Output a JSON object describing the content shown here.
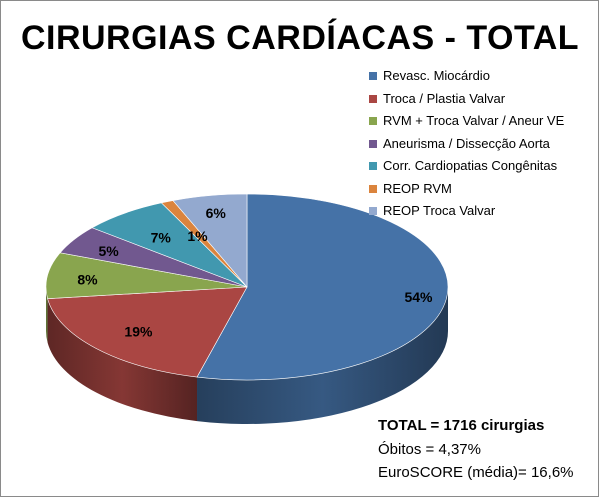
{
  "chart_data": {
    "type": "pie",
    "title": "CIRURGIAS CARDÍACAS - TOTAL",
    "legend_position": "top-right",
    "slices": [
      {
        "name": "Revasc. Miocárdio",
        "value": 54,
        "label": "54%",
        "color": "#4572A7"
      },
      {
        "name": "Troca / Plastia Valvar",
        "value": 19,
        "label": "19%",
        "color": "#AA4643"
      },
      {
        "name": "RVM + Troca Valvar / Aneur VE",
        "value": 8,
        "label": "8%",
        "color": "#89A54E"
      },
      {
        "name": "Aneurisma / Dissecção Aorta",
        "value": 5,
        "label": "5%",
        "color": "#71588F"
      },
      {
        "name": "Corr. Cardiopatias Congênitas",
        "value": 7,
        "label": "7%",
        "color": "#4198AF"
      },
      {
        "name": "REOP RVM",
        "value": 1,
        "label": "1%",
        "color": "#DB843D"
      },
      {
        "name": "REOP Troca Valvar",
        "value": 6,
        "label": "6%",
        "color": "#93A9CF"
      }
    ]
  },
  "notes": {
    "total": "TOTAL = 1716 cirurgias",
    "obitos": "Óbitos = 4,37%",
    "euroscore": "EuroSCORE (média)= 16,6%"
  }
}
